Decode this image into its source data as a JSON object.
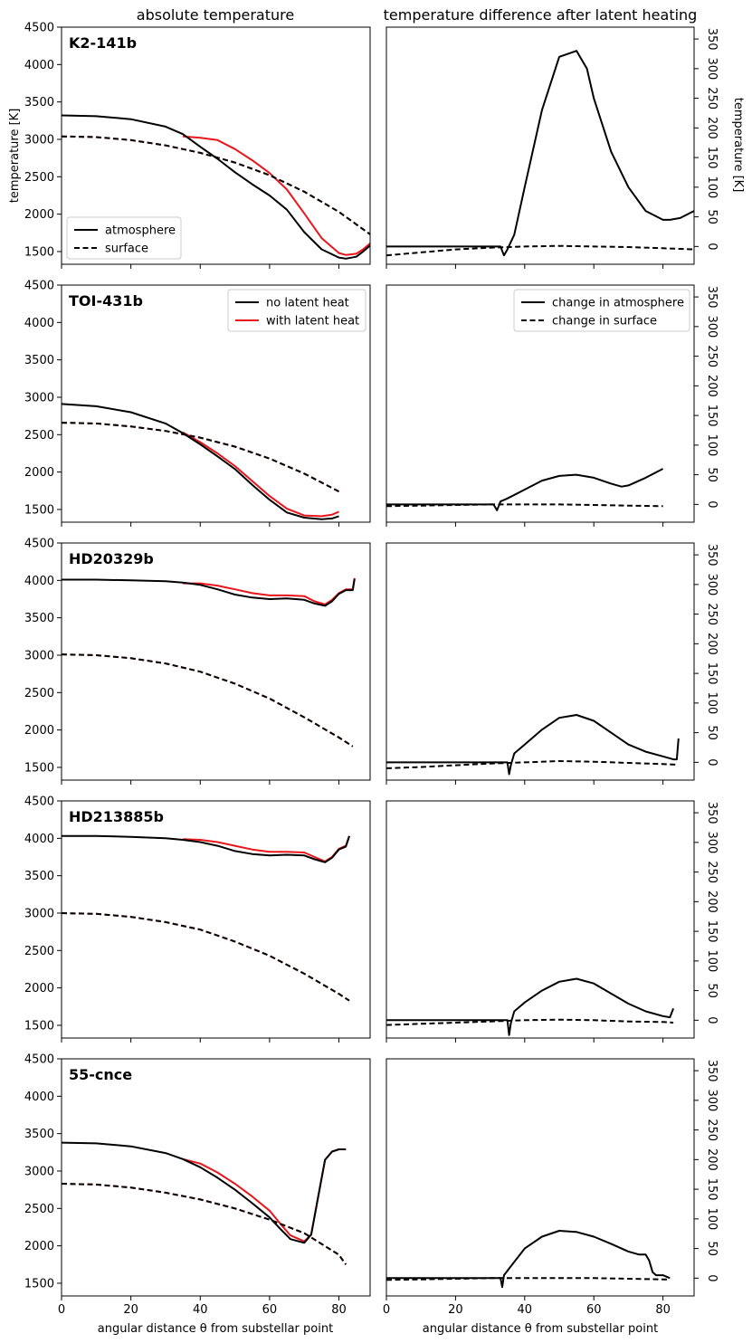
{
  "titles": {
    "left": "absolute temperature",
    "right": "temperature difference after latent heating"
  },
  "labels": {
    "left_ylabel": "temperature [K]",
    "right_ylabel": "temperature [K]",
    "xlabel": "angular distance θ from substellar point"
  },
  "legends": {
    "type": [
      "atmosphere",
      "surface"
    ],
    "heat": [
      "no latent heat",
      "with latent heat"
    ],
    "change": [
      "change in atmosphere",
      "change in surface"
    ]
  },
  "colors": {
    "no_latent": "#000000",
    "with_latent": "#e8161b"
  },
  "chart_data": [
    {
      "panel": "absolute",
      "type": "line",
      "name": "K2-141b",
      "xlim": [
        0,
        89
      ],
      "ylim": [
        1330,
        4500
      ],
      "xticks": [
        0,
        20,
        40,
        60,
        80
      ],
      "yticks": [
        1500,
        2000,
        2500,
        3000,
        3500,
        4000,
        4500
      ],
      "atm_x": [
        0,
        10,
        20,
        30,
        35,
        40,
        45,
        50,
        55,
        60,
        65,
        70,
        75,
        80,
        82,
        85,
        87,
        89
      ],
      "atm_no": [
        3320,
        3310,
        3270,
        3170,
        3070,
        2900,
        2740,
        2560,
        2400,
        2250,
        2060,
        1760,
        1530,
        1420,
        1405,
        1430,
        1500,
        1580
      ],
      "latent_x": [
        35,
        40,
        45,
        50,
        55,
        60,
        65,
        70,
        75,
        80,
        82,
        85,
        87,
        89
      ],
      "atm_with": [
        3040,
        3020,
        2990,
        2870,
        2720,
        2550,
        2330,
        2010,
        1680,
        1480,
        1455,
        1470,
        1530,
        1610
      ],
      "surf_x": [
        0,
        10,
        20,
        30,
        40,
        50,
        60,
        70,
        80,
        89
      ],
      "surf": [
        3040,
        3030,
        2990,
        2920,
        2820,
        2690,
        2520,
        2300,
        2030,
        1730
      ]
    },
    {
      "panel": "difference",
      "type": "line",
      "name": "K2-141b",
      "xlim": [
        0,
        89
      ],
      "ylim": [
        -30,
        370
      ],
      "yticks": [
        0,
        50,
        100,
        150,
        200,
        250,
        300,
        350
      ],
      "atm_x": [
        0,
        10,
        20,
        30,
        33,
        34,
        35,
        37,
        40,
        45,
        50,
        55,
        58,
        60,
        65,
        70,
        75,
        80,
        82,
        85,
        89
      ],
      "atm": [
        0,
        0,
        0,
        0,
        0,
        -15,
        -5,
        20,
        100,
        230,
        320,
        330,
        300,
        250,
        160,
        100,
        60,
        45,
        45,
        48,
        60
      ],
      "surf_x": [
        0,
        10,
        20,
        30,
        40,
        50,
        60,
        70,
        80,
        89
      ],
      "surf": [
        -15,
        -10,
        -5,
        -2,
        0,
        1,
        0,
        -1,
        -3,
        -5
      ]
    },
    {
      "panel": "absolute",
      "type": "line",
      "name": "TOI-431b",
      "xlim": [
        0,
        89
      ],
      "ylim": [
        1330,
        4500
      ],
      "xticks": [
        0,
        20,
        40,
        60,
        80
      ],
      "yticks": [
        1500,
        2000,
        2500,
        3000,
        3500,
        4000,
        4500
      ],
      "atm_x": [
        0,
        10,
        20,
        30,
        35,
        40,
        45,
        50,
        55,
        60,
        65,
        70,
        75,
        78,
        80
      ],
      "atm_no": [
        2910,
        2880,
        2800,
        2650,
        2520,
        2370,
        2210,
        2040,
        1830,
        1630,
        1460,
        1390,
        1370,
        1380,
        1410
      ],
      "latent_x": [
        35,
        40,
        45,
        50,
        55,
        60,
        65,
        70,
        75,
        78,
        80
      ],
      "atm_with": [
        2530,
        2400,
        2250,
        2080,
        1880,
        1680,
        1510,
        1420,
        1410,
        1430,
        1470
      ],
      "surf_x": [
        0,
        10,
        20,
        30,
        40,
        50,
        60,
        70,
        80
      ],
      "surf": [
        2660,
        2650,
        2610,
        2550,
        2460,
        2340,
        2180,
        1980,
        1740
      ]
    },
    {
      "panel": "difference",
      "type": "line",
      "name": "TOI-431b",
      "xlim": [
        0,
        89
      ],
      "ylim": [
        -30,
        370
      ],
      "yticks": [
        0,
        50,
        100,
        150,
        200,
        250,
        300,
        350
      ],
      "atm_x": [
        0,
        10,
        20,
        30,
        31,
        32,
        33,
        35,
        40,
        45,
        50,
        55,
        60,
        65,
        68,
        70,
        75,
        80
      ],
      "atm": [
        0,
        0,
        0,
        0,
        0,
        -10,
        5,
        10,
        25,
        40,
        48,
        50,
        45,
        35,
        30,
        32,
        45,
        60
      ],
      "surf_x": [
        0,
        10,
        20,
        30,
        40,
        50,
        60,
        70,
        80
      ],
      "surf": [
        -3,
        -2,
        -1,
        0,
        0,
        0,
        -1,
        -2,
        -3
      ]
    },
    {
      "panel": "absolute",
      "type": "line",
      "name": "HD20329b",
      "xlim": [
        0,
        89
      ],
      "ylim": [
        1330,
        4500
      ],
      "xticks": [
        0,
        20,
        40,
        60,
        80
      ],
      "yticks": [
        1500,
        2000,
        2500,
        3000,
        3500,
        4000,
        4500
      ],
      "atm_x": [
        0,
        10,
        20,
        30,
        35,
        40,
        45,
        50,
        55,
        60,
        65,
        70,
        73,
        76,
        78,
        80,
        82,
        84,
        84.5
      ],
      "atm_no": [
        4010,
        4010,
        4000,
        3990,
        3970,
        3940,
        3880,
        3810,
        3770,
        3750,
        3760,
        3740,
        3690,
        3660,
        3720,
        3820,
        3870,
        3870,
        4020
      ],
      "latent_x": [
        35,
        40,
        45,
        50,
        55,
        60,
        65,
        70,
        73,
        76,
        78,
        80,
        82,
        84,
        84.5
      ],
      "atm_with": [
        3960,
        3960,
        3930,
        3880,
        3830,
        3800,
        3800,
        3790,
        3720,
        3680,
        3740,
        3830,
        3880,
        3880,
        4030
      ],
      "surf_x": [
        0,
        10,
        20,
        30,
        40,
        50,
        60,
        70,
        80,
        84
      ],
      "surf": [
        3010,
        3000,
        2960,
        2890,
        2780,
        2620,
        2420,
        2170,
        1900,
        1780
      ]
    },
    {
      "panel": "difference",
      "type": "line",
      "name": "HD20329b",
      "xlim": [
        0,
        89
      ],
      "ylim": [
        -30,
        370
      ],
      "yticks": [
        0,
        50,
        100,
        150,
        200,
        250,
        300,
        350
      ],
      "atm_x": [
        0,
        10,
        20,
        30,
        35,
        35.5,
        36,
        37,
        40,
        45,
        50,
        55,
        60,
        65,
        70,
        75,
        80,
        83,
        84,
        84.5
      ],
      "atm": [
        0,
        0,
        0,
        0,
        0,
        -20,
        -5,
        15,
        30,
        55,
        75,
        80,
        70,
        50,
        30,
        18,
        10,
        5,
        5,
        40
      ],
      "surf_x": [
        0,
        10,
        20,
        30,
        40,
        50,
        60,
        70,
        80,
        84
      ],
      "surf": [
        -10,
        -8,
        -5,
        -2,
        0,
        2,
        1,
        -1,
        -3,
        -4
      ]
    },
    {
      "panel": "absolute",
      "type": "line",
      "name": "HD213885b",
      "xlim": [
        0,
        89
      ],
      "ylim": [
        1330,
        4500
      ],
      "xticks": [
        0,
        20,
        40,
        60,
        80
      ],
      "yticks": [
        1500,
        2000,
        2500,
        3000,
        3500,
        4000,
        4500
      ],
      "atm_x": [
        0,
        10,
        20,
        30,
        35,
        40,
        45,
        50,
        55,
        60,
        65,
        70,
        73,
        76,
        78,
        80,
        82,
        83
      ],
      "atm_no": [
        4030,
        4030,
        4020,
        4000,
        3980,
        3950,
        3900,
        3830,
        3790,
        3770,
        3780,
        3770,
        3720,
        3680,
        3740,
        3850,
        3890,
        4030
      ],
      "latent_x": [
        35,
        40,
        45,
        50,
        55,
        60,
        65,
        70,
        73,
        76,
        78,
        80,
        82,
        83
      ],
      "atm_with": [
        3990,
        3980,
        3950,
        3900,
        3850,
        3820,
        3820,
        3810,
        3750,
        3690,
        3750,
        3860,
        3900,
        4030
      ],
      "surf_x": [
        0,
        10,
        20,
        30,
        40,
        50,
        60,
        70,
        80,
        83
      ],
      "surf": [
        3000,
        2990,
        2950,
        2880,
        2780,
        2620,
        2430,
        2190,
        1920,
        1830
      ]
    },
    {
      "panel": "difference",
      "type": "line",
      "name": "HD213885b",
      "xlim": [
        0,
        89
      ],
      "ylim": [
        -30,
        370
      ],
      "yticks": [
        0,
        50,
        100,
        150,
        200,
        250,
        300,
        350
      ],
      "atm_x": [
        0,
        10,
        20,
        30,
        35,
        35.5,
        36,
        37,
        40,
        45,
        50,
        55,
        60,
        65,
        70,
        75,
        80,
        82,
        83
      ],
      "atm": [
        0,
        0,
        0,
        0,
        0,
        -25,
        -5,
        15,
        30,
        50,
        65,
        70,
        62,
        45,
        28,
        15,
        7,
        5,
        20
      ],
      "surf_x": [
        0,
        10,
        20,
        30,
        40,
        50,
        60,
        70,
        80,
        83
      ],
      "surf": [
        -8,
        -6,
        -4,
        -2,
        0,
        1,
        0,
        -2,
        -3,
        -4
      ]
    },
    {
      "panel": "absolute",
      "type": "line",
      "name": "55-cnce",
      "xlim": [
        0,
        89
      ],
      "ylim": [
        1330,
        4500
      ],
      "xticks": [
        0,
        20,
        40,
        60,
        80
      ],
      "yticks": [
        1500,
        2000,
        2500,
        3000,
        3500,
        4000,
        4500
      ],
      "atm_x": [
        0,
        10,
        20,
        30,
        35,
        40,
        45,
        50,
        55,
        60,
        63,
        66,
        70,
        72,
        74,
        76,
        78,
        80,
        82
      ],
      "atm_no": [
        3380,
        3370,
        3330,
        3240,
        3160,
        3050,
        2910,
        2750,
        2570,
        2380,
        2230,
        2090,
        2040,
        2150,
        2650,
        3150,
        3260,
        3290,
        3290
      ],
      "latent_x": [
        35,
        40,
        45,
        50,
        55,
        60,
        63,
        66,
        70,
        72,
        74,
        76,
        78,
        80,
        82
      ],
      "atm_with": [
        3160,
        3100,
        2980,
        2830,
        2660,
        2470,
        2300,
        2140,
        2060,
        2150,
        2650,
        3150,
        3260,
        3290,
        3290
      ],
      "surf_x": [
        0,
        10,
        20,
        30,
        40,
        50,
        60,
        70,
        80,
        82
      ],
      "surf": [
        2830,
        2820,
        2780,
        2710,
        2620,
        2500,
        2350,
        2170,
        1880,
        1750
      ]
    },
    {
      "panel": "difference",
      "type": "line",
      "name": "55-cnce",
      "xlim": [
        0,
        89
      ],
      "ylim": [
        -30,
        370
      ],
      "yticks": [
        0,
        50,
        100,
        150,
        200,
        250,
        300,
        350
      ],
      "atm_x": [
        0,
        10,
        20,
        30,
        33,
        33.5,
        34,
        36,
        40,
        45,
        50,
        55,
        60,
        65,
        70,
        73,
        75,
        76,
        77,
        78,
        80,
        82
      ],
      "atm": [
        0,
        0,
        0,
        0,
        0,
        -15,
        5,
        20,
        50,
        70,
        80,
        78,
        70,
        58,
        45,
        40,
        40,
        30,
        10,
        5,
        5,
        0
      ],
      "surf_x": [
        0,
        10,
        20,
        30,
        40,
        50,
        60,
        70,
        80,
        82
      ],
      "surf": [
        -3,
        -2,
        -1,
        0,
        0,
        0,
        0,
        -1,
        -2,
        -2
      ]
    }
  ]
}
